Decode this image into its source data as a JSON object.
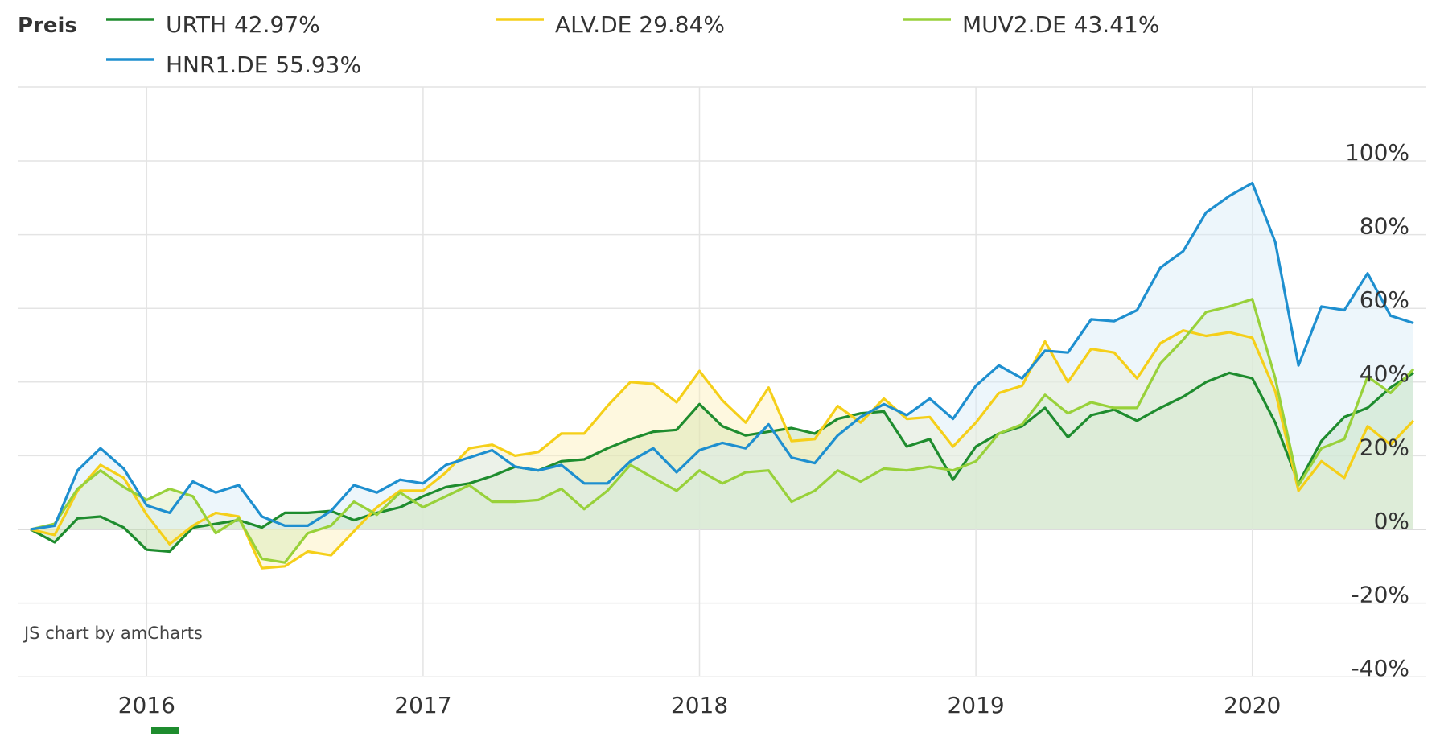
{
  "legend": {
    "title": "Preis"
  },
  "credit": "JS chart by amCharts",
  "chart_data": {
    "type": "line",
    "title": "",
    "xlabel": "",
    "ylabel": "",
    "y_unit": "%",
    "ylim": [
      -40,
      120
    ],
    "xlim": [
      2015.58,
      2020.58
    ],
    "y_ticks": [
      {
        "value": 100,
        "label": "100%"
      },
      {
        "value": 80,
        "label": "80%"
      },
      {
        "value": 60,
        "label": "60%"
      },
      {
        "value": 40,
        "label": "40%"
      },
      {
        "value": 20,
        "label": "20%"
      },
      {
        "value": 0,
        "label": "0%"
      },
      {
        "value": -20,
        "label": "-20%"
      },
      {
        "value": -40,
        "label": "-40%"
      }
    ],
    "x_ticks": [
      {
        "value": 2016,
        "label": "2016"
      },
      {
        "value": 2017,
        "label": "2017"
      },
      {
        "value": 2018,
        "label": "2018"
      },
      {
        "value": 2019,
        "label": "2019"
      },
      {
        "value": 2020,
        "label": "2020"
      }
    ],
    "grid": true,
    "legend_position": "top",
    "x": [
      2015.58,
      2015.667,
      2015.75,
      2015.833,
      2015.917,
      2016.0,
      2016.083,
      2016.167,
      2016.25,
      2016.333,
      2016.417,
      2016.5,
      2016.583,
      2016.667,
      2016.75,
      2016.833,
      2016.917,
      2017.0,
      2017.083,
      2017.167,
      2017.25,
      2017.333,
      2017.417,
      2017.5,
      2017.583,
      2017.667,
      2017.75,
      2017.833,
      2017.917,
      2018.0,
      2018.083,
      2018.167,
      2018.25,
      2018.333,
      2018.417,
      2018.5,
      2018.583,
      2018.667,
      2018.75,
      2018.833,
      2018.917,
      2019.0,
      2019.083,
      2019.167,
      2019.25,
      2019.333,
      2019.417,
      2019.5,
      2019.583,
      2019.667,
      2019.75,
      2019.833,
      2019.917,
      2020.0,
      2020.083,
      2020.167,
      2020.25,
      2020.333,
      2020.417,
      2020.5,
      2020.583
    ],
    "series": [
      {
        "name": "URTH",
        "label": "URTH 42.97%",
        "color": "#1e8c2e",
        "fill": "#b7d9a6",
        "values": [
          0,
          -3.5,
          3,
          3.5,
          0.5,
          -5.5,
          -6,
          0.5,
          1.5,
          2.5,
          0.5,
          4.5,
          4.5,
          5,
          2.5,
          4.5,
          6,
          9,
          11.5,
          12.5,
          14.5,
          17,
          16,
          18.5,
          19,
          22,
          24.5,
          26.5,
          27,
          34,
          28,
          25.5,
          26.5,
          27.5,
          26,
          30,
          31.5,
          32,
          22.5,
          24.5,
          13.5,
          22.5,
          26,
          28,
          33,
          25,
          31,
          32.5,
          29.5,
          33,
          36,
          40,
          42.5,
          41,
          29,
          12.5,
          24,
          30.5,
          33,
          38.5,
          42.5
        ]
      },
      {
        "name": "ALV.DE",
        "label": "ALV.DE 29.84%",
        "color": "#f5cf19",
        "fill": "#fdf0b8",
        "values": [
          0,
          -1.5,
          10.5,
          17.5,
          14,
          4,
          -4,
          1,
          4.5,
          3.5,
          -10.5,
          -10,
          -6,
          -7,
          -0.5,
          6,
          10.5,
          10.5,
          15.5,
          22,
          23,
          20,
          21,
          26,
          26,
          33.5,
          40,
          39.5,
          34.5,
          43,
          35,
          29,
          38.5,
          24,
          24.5,
          33.5,
          29,
          35.5,
          30,
          30.5,
          22.5,
          29,
          37,
          39,
          51,
          40,
          49,
          48,
          41,
          50.5,
          54,
          52.5,
          53.5,
          52,
          37.5,
          10.5,
          18.5,
          14,
          28,
          23,
          29.5
        ]
      },
      {
        "name": "MUV2.DE",
        "label": "MUV2.DE 43.41%",
        "color": "#98d13a",
        "fill": "#d6ebb6",
        "values": [
          0,
          1.5,
          11,
          16,
          11.5,
          8,
          11,
          9,
          -1,
          3,
          -8,
          -9,
          -1,
          1,
          7.5,
          4,
          10,
          6,
          9,
          12,
          7.5,
          7.5,
          8,
          11,
          5.5,
          10.5,
          17.5,
          14,
          10.5,
          16,
          12.5,
          15.5,
          16,
          7.5,
          10.5,
          16,
          13,
          16.5,
          16,
          17,
          16,
          18.5,
          26,
          28.5,
          36.5,
          31.5,
          34.5,
          33,
          33,
          45,
          51.5,
          59,
          60.5,
          62.5,
          41,
          12,
          22,
          24.5,
          41.5,
          37,
          43.5
        ]
      },
      {
        "name": "HNR1.DE",
        "label": "HNR1.DE 55.93%",
        "color": "#1e8fcf",
        "fill": "#d7eaf6",
        "values": [
          0,
          1,
          16,
          22,
          16.5,
          6.5,
          4.5,
          13,
          10,
          12,
          3.5,
          1,
          1,
          5,
          12,
          10,
          13.5,
          12.5,
          17.5,
          19.5,
          21.5,
          17,
          16,
          17.5,
          12.5,
          12.5,
          18.5,
          22,
          15.5,
          21.5,
          23.5,
          22,
          28.5,
          19.5,
          18,
          25.5,
          30.5,
          34,
          31,
          35.5,
          30,
          39,
          44.5,
          41,
          48.5,
          48,
          57,
          56.5,
          59.5,
          71,
          75.5,
          86,
          90.5,
          94,
          78,
          44.5,
          60.5,
          59.5,
          69.5,
          58,
          56
        ]
      }
    ]
  }
}
